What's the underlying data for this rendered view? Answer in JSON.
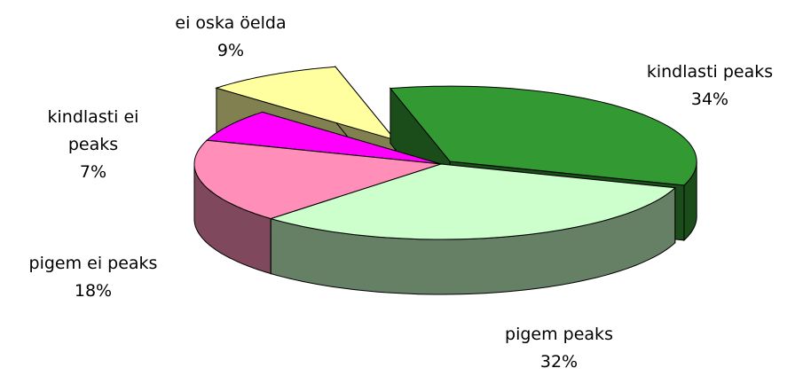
{
  "chart_data": {
    "type": "pie",
    "categories": [
      "kindlasti peaks",
      "pigem peaks",
      "pigem ei peaks",
      "kindlasti ei peaks",
      "ei oska öelda"
    ],
    "values": [
      34,
      32,
      18,
      7,
      9
    ],
    "value_labels": [
      "34%",
      "32%",
      "18%",
      "7%",
      "9%"
    ],
    "colors": [
      "#339933",
      "#ccffcc",
      "#ff8fb8",
      "#ff00ff",
      "#ffffa0"
    ],
    "legend": false
  }
}
